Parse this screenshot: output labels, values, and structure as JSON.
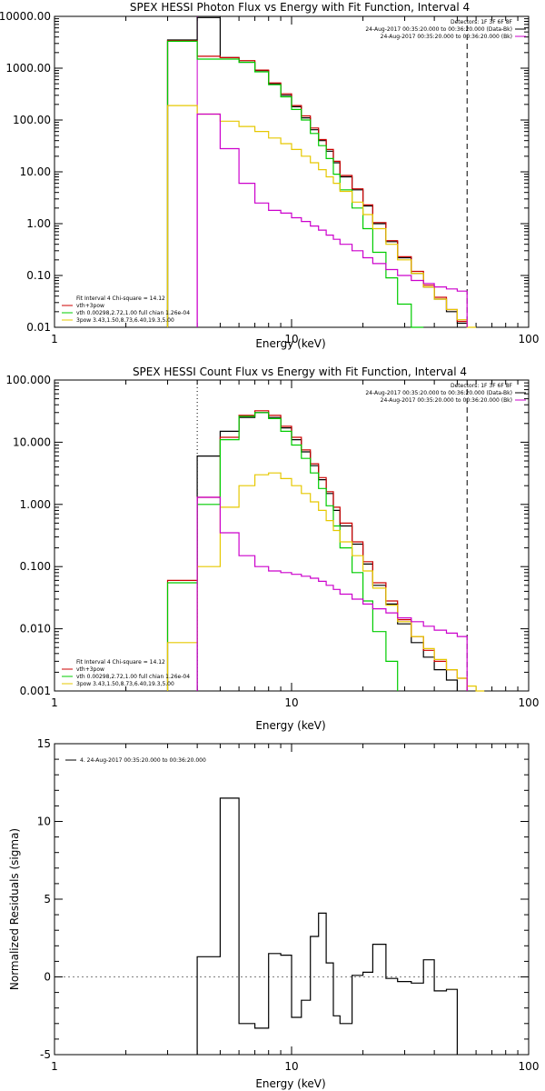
{
  "chart_data": [
    {
      "type": "line",
      "title": "SPEX HESSI Photon Flux vs Energy with Fit Function, Interval 4",
      "xlabel": "Energy (keV)",
      "ylabel": "",
      "xscale": "log",
      "yscale": "log",
      "xlim": [
        1,
        100
      ],
      "ylim": [
        0.01,
        10000
      ],
      "xticks": [
        {
          "v": 1,
          "label": "1"
        },
        {
          "v": 10,
          "label": "10"
        },
        {
          "v": 100,
          "label": "100"
        }
      ],
      "yticks": [
        {
          "v": 10000,
          "label": "10000.00"
        },
        {
          "v": 1000,
          "label": "1000.00"
        },
        {
          "v": 100,
          "label": "100.00"
        },
        {
          "v": 10,
          "label": "10.00"
        },
        {
          "v": 1,
          "label": "1.00"
        },
        {
          "v": 0.1,
          "label": "0.10"
        },
        {
          "v": 0.01,
          "label": "0.01"
        }
      ],
      "vlines": [
        {
          "x": 4.0,
          "style": "solid",
          "color": "#cc00cc"
        },
        {
          "x": 55.0,
          "style": "dashed",
          "color": "#000000"
        }
      ],
      "legend_topright": [
        {
          "text": "Detectors: 1F 3F 6F 8F",
          "color": "#000000"
        },
        {
          "text": "24-Aug-2017 00:35:20.000 to 00:36:20.000 (Data-Bk)",
          "color": "#000000",
          "swatch": "#000000"
        },
        {
          "text": "24-Aug-2017 00:35:20.000 to 00:36:20.000 (Bk)",
          "color": "#000000",
          "swatch": "#cc00cc"
        }
      ],
      "legend_bottomleft": [
        {
          "text": "Fit Interval 4   Chi-square = 14.12",
          "color": "#000000"
        },
        {
          "text": "vth+3pow",
          "color": "#000000",
          "swatch": "#cc0000"
        },
        {
          "text": "vth 0.00298,2.72,1.00  full chian 1.26e-04",
          "color": "#000000",
          "swatch": "#00cc00"
        },
        {
          "text": "3pow 3.43,1.50,8.73,6.40,19.3,5.00",
          "color": "#000000",
          "swatch": "#e6c800"
        }
      ],
      "bin_edges": [
        3,
        4,
        5,
        6,
        7,
        8,
        9,
        10,
        11,
        12,
        13,
        14,
        15,
        16,
        18,
        20,
        22,
        25,
        28,
        32,
        36,
        40,
        45,
        50,
        55,
        60
      ],
      "series": [
        {
          "color": "#000000",
          "values": [
            3500,
            9500,
            1600,
            1300,
            900,
            500,
            300,
            180,
            110,
            65,
            40,
            25,
            15,
            8,
            4.5,
            2.2,
            1.0,
            0.45,
            0.22,
            0.11,
            0.06,
            0.035,
            0.02,
            0.012,
            null
          ]
        },
        {
          "color": "#cc0000",
          "values": [
            3400,
            1700,
            1600,
            1400,
            920,
            520,
            320,
            190,
            120,
            70,
            42,
            27,
            16,
            8.5,
            4.7,
            2.3,
            1.05,
            0.47,
            0.23,
            0.12,
            0.065,
            0.038,
            0.022,
            0.013,
            null
          ]
        },
        {
          "color": "#00cc00",
          "values": [
            3300,
            1500,
            1500,
            1300,
            850,
            480,
            280,
            160,
            100,
            55,
            32,
            18,
            9,
            4.5,
            2.0,
            0.8,
            0.28,
            0.09,
            0.028,
            0.008,
            null,
            null,
            null,
            null,
            null
          ]
        },
        {
          "color": "#e6c800",
          "values": [
            190,
            130,
            95,
            75,
            60,
            45,
            35,
            27,
            20,
            15,
            11,
            8,
            6,
            4.2,
            2.6,
            1.5,
            0.8,
            0.4,
            0.2,
            0.11,
            0.06,
            0.035,
            0.022,
            0.014,
            0.009
          ]
        },
        {
          "color": "#cc00cc",
          "values": [
            null,
            130,
            28,
            6,
            2.5,
            1.8,
            1.6,
            1.3,
            1.1,
            0.9,
            0.75,
            0.6,
            0.5,
            0.4,
            0.3,
            0.22,
            0.17,
            0.13,
            0.1,
            0.08,
            0.07,
            0.06,
            0.055,
            0.05,
            null
          ]
        }
      ]
    },
    {
      "type": "line",
      "title": "SPEX HESSI Count Flux vs Energy with Fit Function, Interval 4",
      "xlabel": "Energy (keV)",
      "ylabel": "",
      "xscale": "log",
      "yscale": "log",
      "xlim": [
        1,
        100
      ],
      "ylim": [
        0.001,
        100
      ],
      "xticks": [
        {
          "v": 1,
          "label": "1"
        },
        {
          "v": 10,
          "label": "10"
        },
        {
          "v": 100,
          "label": "100"
        }
      ],
      "yticks": [
        {
          "v": 100,
          "label": "100.000"
        },
        {
          "v": 10,
          "label": "10.000"
        },
        {
          "v": 1,
          "label": "1.000"
        },
        {
          "v": 0.1,
          "label": "0.100"
        },
        {
          "v": 0.01,
          "label": "0.010"
        },
        {
          "v": 0.001,
          "label": "0.001"
        }
      ],
      "vlines": [
        {
          "x": 4.0,
          "style": "dotted",
          "color": "#000000"
        },
        {
          "x": 55.0,
          "style": "dashed",
          "color": "#000000"
        }
      ],
      "legend_topright": [
        {
          "text": "Detectors: 1F 3F 6F 8F",
          "color": "#000000"
        },
        {
          "text": "24-Aug-2017 00:35:20.000 to 00:36:20.000 (Data-Bk)",
          "color": "#000000",
          "swatch": "#000000"
        },
        {
          "text": "24-Aug-2017 00:35:20.000 to 00:36:20.000 (Bk)",
          "color": "#000000",
          "swatch": "#cc00cc"
        }
      ],
      "legend_bottomleft": [
        {
          "text": "Fit Interval 4   Chi-square = 14.12",
          "color": "#000000"
        },
        {
          "text": "vth+3pow",
          "color": "#000000",
          "swatch": "#cc0000"
        },
        {
          "text": "vth 0.00298,2.72,1.00  full chian 1.26e-04",
          "color": "#000000",
          "swatch": "#00cc00"
        },
        {
          "text": "3pow 3.43,1.50,8.73,6.40,19.3,5.00",
          "color": "#000000",
          "swatch": "#e6c800"
        }
      ],
      "bin_edges": [
        3,
        4,
        5,
        6,
        7,
        8,
        9,
        10,
        11,
        12,
        13,
        14,
        15,
        16,
        18,
        20,
        22,
        25,
        28,
        32,
        36,
        40,
        45,
        50,
        55,
        60,
        65,
        70
      ],
      "series": [
        {
          "color": "#000000",
          "values": [
            null,
            6.0,
            15,
            25,
            30,
            25,
            17,
            11,
            7.0,
            4.2,
            2.5,
            1.5,
            0.8,
            0.45,
            0.23,
            0.11,
            0.05,
            0.025,
            0.012,
            0.006,
            0.0035,
            0.0022,
            0.0015,
            null,
            null,
            null,
            null
          ]
        },
        {
          "color": "#cc0000",
          "values": [
            0.06,
            1.3,
            12,
            27,
            32,
            27,
            18,
            12,
            7.5,
            4.5,
            2.7,
            1.6,
            0.9,
            0.5,
            0.25,
            0.12,
            0.055,
            0.028,
            0.014,
            0.0075,
            0.0045,
            0.003,
            0.0022,
            0.0016,
            null,
            null,
            null
          ]
        },
        {
          "color": "#00cc00",
          "values": [
            0.055,
            1.0,
            11,
            26,
            30,
            24,
            15,
            9,
            5.5,
            3.2,
            1.8,
            0.95,
            0.45,
            0.2,
            0.08,
            0.028,
            0.009,
            0.003,
            null,
            null,
            null,
            null,
            null,
            null,
            null,
            null,
            null
          ]
        },
        {
          "color": "#e6c800",
          "values": [
            0.006,
            0.1,
            0.9,
            2.0,
            3.0,
            3.2,
            2.6,
            2.0,
            1.5,
            1.1,
            0.8,
            0.55,
            0.38,
            0.25,
            0.15,
            0.085,
            0.045,
            0.024,
            0.013,
            0.0075,
            0.0048,
            0.0032,
            0.0022,
            0.0016,
            0.0012,
            0.001,
            null
          ]
        },
        {
          "color": "#cc00cc",
          "values": [
            null,
            1.3,
            0.35,
            0.15,
            0.1,
            0.085,
            0.08,
            0.075,
            0.07,
            0.065,
            0.058,
            0.05,
            0.043,
            0.036,
            0.03,
            0.025,
            0.021,
            0.018,
            0.015,
            0.013,
            0.011,
            0.0095,
            0.0085,
            0.0075,
            null,
            null,
            null
          ]
        }
      ]
    },
    {
      "type": "line",
      "title": "",
      "xlabel": "Energy (keV)",
      "ylabel": "Normalized Residuals (sigma)",
      "xscale": "log",
      "yscale": "linear",
      "xlim": [
        1,
        100
      ],
      "ylim": [
        -5,
        15
      ],
      "xticks": [
        {
          "v": 1,
          "label": "1"
        },
        {
          "v": 10,
          "label": "10"
        },
        {
          "v": 100,
          "label": "100"
        }
      ],
      "yticks": [
        {
          "v": 15,
          "label": "15"
        },
        {
          "v": 10,
          "label": "10"
        },
        {
          "v": 5,
          "label": "5"
        },
        {
          "v": 0,
          "label": "0"
        },
        {
          "v": -5,
          "label": "-5"
        }
      ],
      "vlines": [],
      "legend_topright": [],
      "legend_bottomleft": [],
      "legend_topleft": [
        {
          "text": "4. 24-Aug-2017 00:35:20.000 to 00:36:20.000",
          "color": "#000000",
          "swatch": "#000000"
        }
      ],
      "bin_edges": [
        3,
        4,
        5,
        6,
        7,
        8,
        9,
        10,
        11,
        12,
        13,
        14,
        15,
        16,
        18,
        20,
        22,
        25,
        28,
        32,
        36,
        40,
        45,
        50,
        55,
        60
      ],
      "series": [
        {
          "color": "#000000",
          "values": [
            null,
            1.3,
            11.5,
            -3.0,
            -3.3,
            1.5,
            1.4,
            -2.6,
            -1.5,
            2.6,
            4.1,
            0.9,
            -2.5,
            -3.0,
            0.1,
            0.3,
            2.1,
            -0.1,
            -0.3,
            -0.4,
            1.1,
            -0.9,
            -0.8,
            null,
            null
          ]
        }
      ]
    }
  ]
}
